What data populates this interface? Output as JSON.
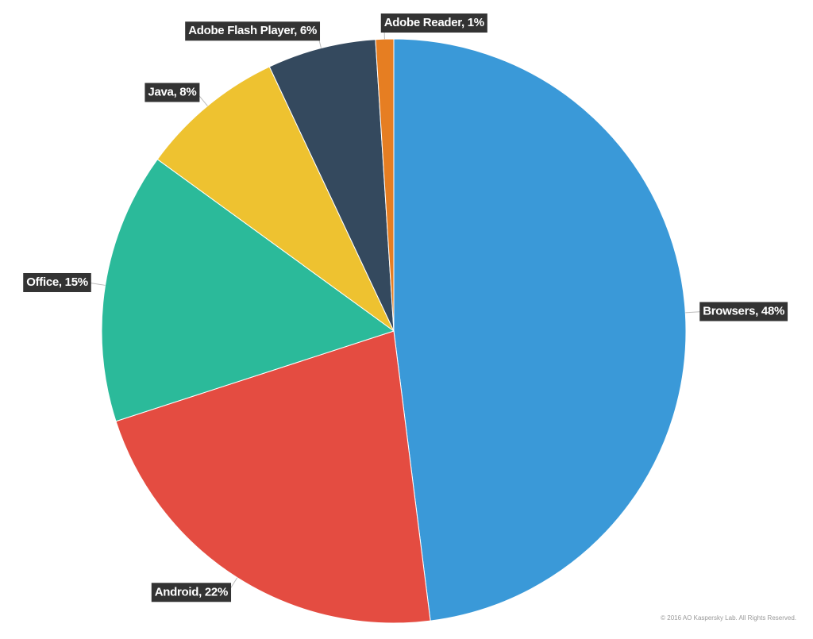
{
  "chart_data": {
    "type": "pie",
    "values": [
      48,
      22,
      15,
      8,
      6,
      1
    ],
    "value_labels": [
      "Browsers, 48%",
      "Android, 22%",
      "Office, 15%",
      "Java, 8%",
      "Adobe Flash Player, 6%",
      "Adobe Reader, 1%"
    ],
    "colors": [
      "#3a99d8",
      "#e44c41",
      "#2bba9a",
      "#eec230",
      "#34495e",
      "#e67e22"
    ],
    "credit": "© 2016 AO Kaspersky Lab. All Rights Reserved."
  }
}
